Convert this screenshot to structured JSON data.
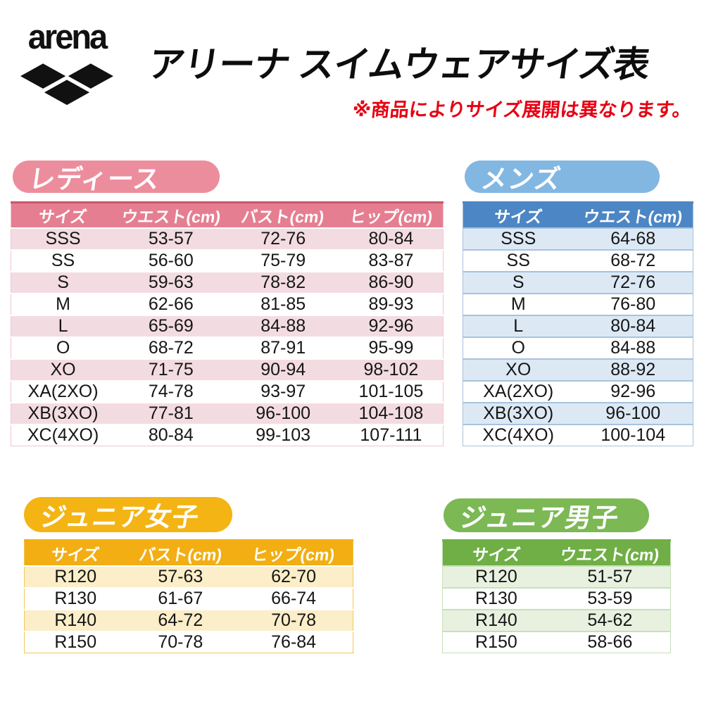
{
  "header": {
    "brand": "arena",
    "title": "アリーナ スイムウェアサイズ表",
    "note": "※商品によりサイズ展開は異なります。",
    "note_color": "#e60012",
    "brand_color": "#111111"
  },
  "tables": {
    "ladies": {
      "badge": "レディース",
      "columns": [
        "サイズ",
        "ウエスト(cm)",
        "バスト(cm)",
        "ヒップ(cm)"
      ],
      "rows": [
        [
          "SSS",
          "53-57",
          "72-76",
          "80-84"
        ],
        [
          "SS",
          "56-60",
          "75-79",
          "83-87"
        ],
        [
          "S",
          "59-63",
          "78-82",
          "86-90"
        ],
        [
          "M",
          "62-66",
          "81-85",
          "89-93"
        ],
        [
          "L",
          "65-69",
          "84-88",
          "92-96"
        ],
        [
          "O",
          "68-72",
          "87-91",
          "95-99"
        ],
        [
          "XO",
          "71-75",
          "90-94",
          "98-102"
        ],
        [
          "XA(2XO)",
          "74-78",
          "93-97",
          "101-105"
        ],
        [
          "XB(3XO)",
          "77-81",
          "96-100",
          "104-108"
        ],
        [
          "XC(4XO)",
          "80-84",
          "99-103",
          "107-111"
        ]
      ],
      "colors": {
        "badge": "#EC8D9D",
        "header": "#E67E91",
        "alt": "#F3DCE1",
        "sep": "#FFFFFF",
        "border": "#F0C6CE",
        "top": "#C9556B"
      }
    },
    "mens": {
      "badge": "メンズ",
      "columns": [
        "サイズ",
        "ウエスト(cm)"
      ],
      "rows": [
        [
          "SSS",
          "64-68"
        ],
        [
          "SS",
          "68-72"
        ],
        [
          "S",
          "72-76"
        ],
        [
          "M",
          "76-80"
        ],
        [
          "L",
          "80-84"
        ],
        [
          "O",
          "84-88"
        ],
        [
          "XO",
          "88-92"
        ],
        [
          "XA(2XO)",
          "92-96"
        ],
        [
          "XB(3XO)",
          "96-100"
        ],
        [
          "XC(4XO)",
          "100-104"
        ]
      ],
      "colors": {
        "badge": "#82B7E2",
        "header": "#4C86C4",
        "alt": "#DCE9F5",
        "sep": "#A6C3DD",
        "border": "#A6C3DD",
        "top": "#4C86C4"
      }
    },
    "junior_girls": {
      "badge": "ジュニア女子",
      "columns": [
        "サイズ",
        "バスト(cm)",
        "ヒップ(cm)"
      ],
      "rows": [
        [
          "R120",
          "57-63",
          "62-70"
        ],
        [
          "R130",
          "61-67",
          "66-74"
        ],
        [
          "R140",
          "64-72",
          "70-78"
        ],
        [
          "R150",
          "70-78",
          "76-84"
        ]
      ],
      "colors": {
        "badge": "#F3B414",
        "header": "#F2AE12",
        "alt": "#FBEEC8",
        "sep": "#FFFFFF",
        "border": "#EFC75A",
        "top": "#F2AE12"
      }
    },
    "junior_boys": {
      "badge": "ジュニア男子",
      "columns": [
        "サイズ",
        "ウエスト(cm)"
      ],
      "rows": [
        [
          "R120",
          "51-57"
        ],
        [
          "R130",
          "53-59"
        ],
        [
          "R140",
          "54-62"
        ],
        [
          "R150",
          "58-66"
        ]
      ],
      "colors": {
        "badge": "#7CB854",
        "header": "#6FAF46",
        "alt": "#E8F1E0",
        "sep": "#C9DFBA",
        "border": "#C9DFBA",
        "top": "#6FAF46"
      }
    }
  }
}
